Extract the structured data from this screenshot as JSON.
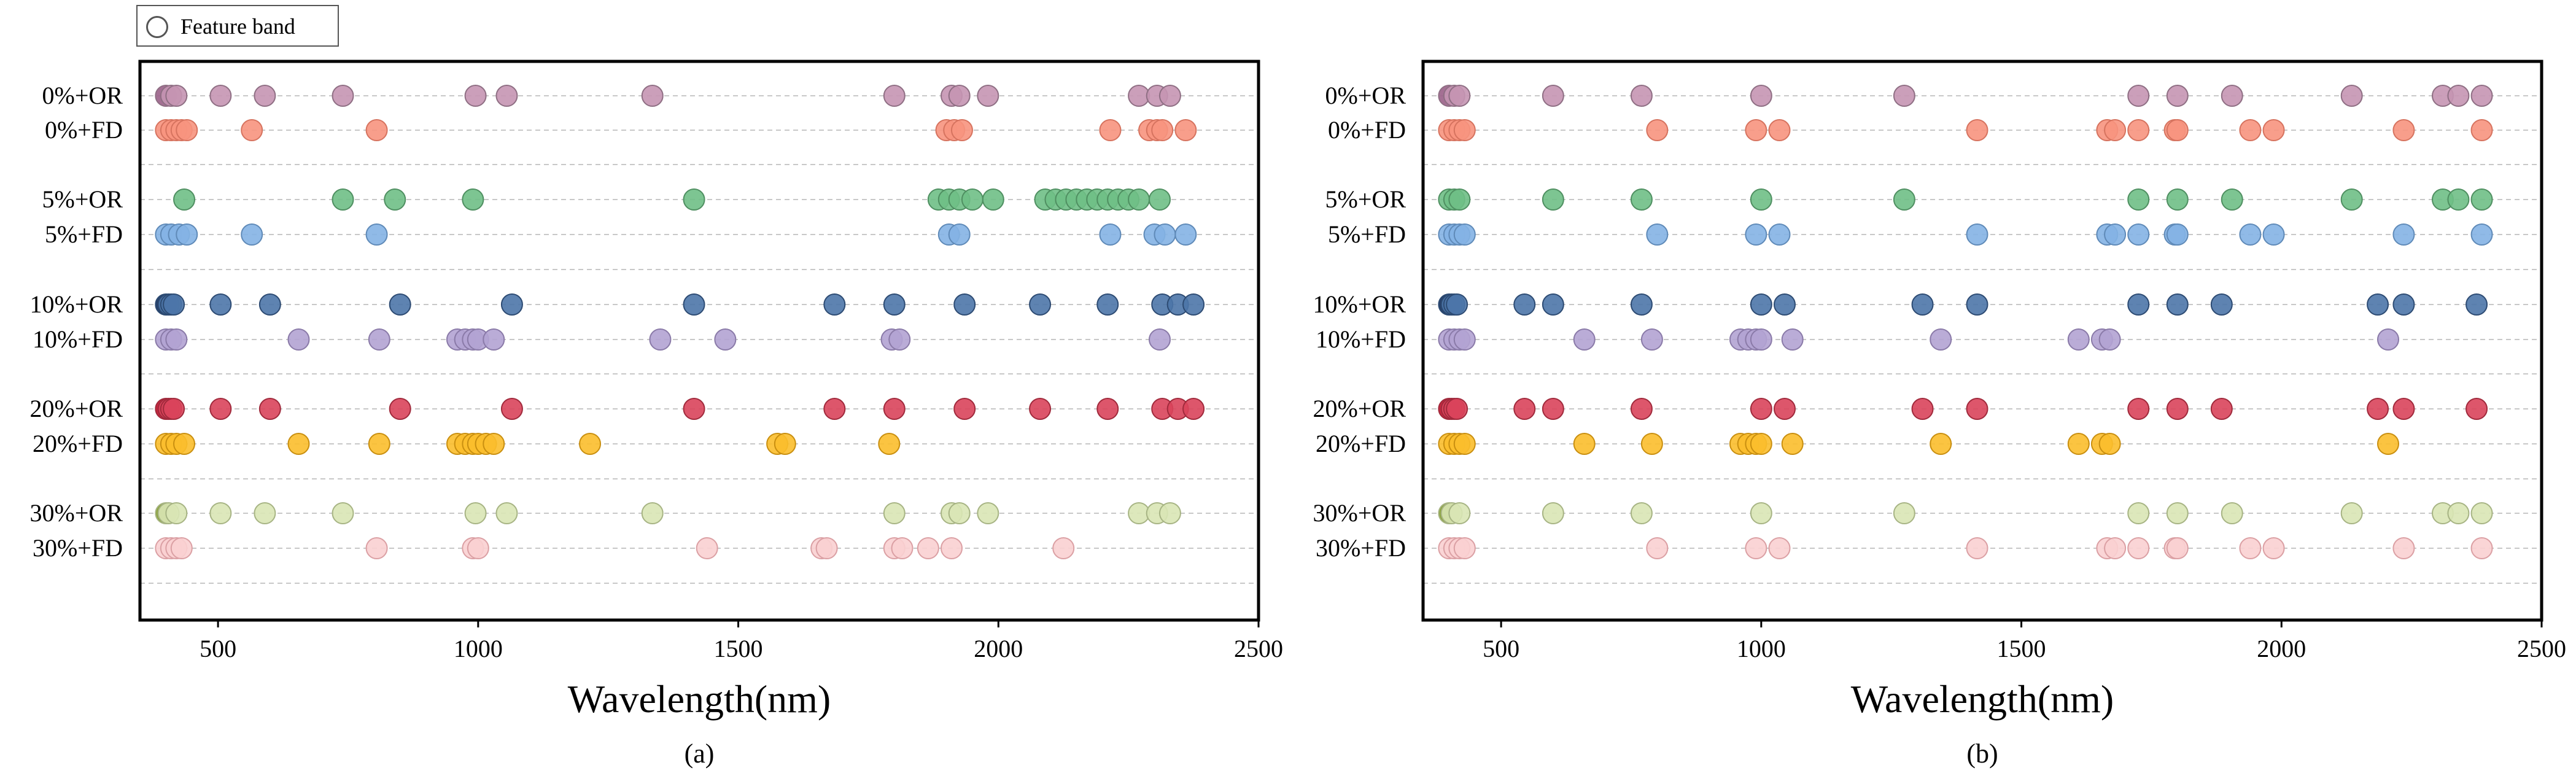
{
  "legend": {
    "label": "Feature band"
  },
  "row_labels": [
    "0%+OR",
    "0%+FD",
    "5%+OR",
    "5%+FD",
    "10%+OR",
    "10%+FD",
    "20%+OR",
    "20%+FD",
    "30%+OR",
    "30%+FD"
  ],
  "row_colors": [
    "#c595b3",
    "#f7937e",
    "#6fbf86",
    "#84b2e4",
    "#4d75a8",
    "#b3a3d3",
    "#d9445b",
    "#fbbe2c",
    "#d9e6b5",
    "#fad0d2"
  ],
  "row_first_colors": [
    "#9a6088",
    "#f7937e",
    "#6fbf86",
    "#84b2e4",
    "#0e2b59",
    "#b3a3d3",
    "#c0102a",
    "#fbbe2c",
    "#7f9a2a",
    "#fad0d2"
  ],
  "row_edges": [
    "#8f6f84",
    "#d6735f",
    "#4f8f61",
    "#5f8ab8",
    "#2d4b73",
    "#8a7aa8",
    "#a02a3c",
    "#c98f10",
    "#a7b484",
    "#dba0a4"
  ],
  "chart_data": [
    {
      "type": "scatter",
      "panel_label": "(a)",
      "xlabel": "Wavelength(nm)",
      "xlim": [
        350,
        2500
      ],
      "xticks": [
        500,
        1000,
        1500,
        2000,
        2500
      ],
      "grid": "horizontal dashed",
      "series": [
        {
          "name": "0%+OR",
          "x": [
            400,
            410,
            420,
            505,
            590,
            740,
            995,
            1055,
            1335,
            1800,
            1910,
            1925,
            1980,
            2270,
            2305,
            2330
          ]
        },
        {
          "name": "0%+FD",
          "x": [
            400,
            410,
            420,
            430,
            440,
            565,
            805,
            1900,
            1915,
            1930,
            2215,
            2290,
            2305,
            2315,
            2360
          ]
        },
        {
          "name": "5%+OR",
          "x": [
            435,
            740,
            840,
            990,
            1415,
            1885,
            1905,
            1925,
            1950,
            1990,
            2090,
            2110,
            2130,
            2150,
            2170,
            2190,
            2210,
            2230,
            2250,
            2270,
            2310
          ]
        },
        {
          "name": "5%+FD",
          "x": [
            400,
            410,
            425,
            440,
            565,
            805,
            1905,
            1925,
            2215,
            2300,
            2320,
            2360
          ]
        },
        {
          "name": "10%+OR",
          "x": [
            400,
            405,
            410,
            415,
            505,
            600,
            850,
            1065,
            1415,
            1685,
            1800,
            1935,
            2080,
            2210,
            2315,
            2345,
            2375
          ]
        },
        {
          "name": "10%+FD",
          "x": [
            400,
            410,
            420,
            655,
            810,
            960,
            975,
            990,
            1000,
            1030,
            1350,
            1475,
            1795,
            1810,
            2310
          ]
        },
        {
          "name": "20%+OR",
          "x": [
            400,
            405,
            410,
            415,
            505,
            600,
            850,
            1065,
            1415,
            1685,
            1800,
            1935,
            2080,
            2210,
            2315,
            2345,
            2375
          ]
        },
        {
          "name": "20%+FD",
          "x": [
            400,
            410,
            420,
            435,
            655,
            810,
            960,
            975,
            990,
            1000,
            1015,
            1030,
            1215,
            1575,
            1590,
            1790
          ]
        },
        {
          "name": "30%+OR",
          "x": [
            400,
            405,
            420,
            505,
            590,
            740,
            995,
            1055,
            1335,
            1800,
            1910,
            1925,
            1980,
            2270,
            2305,
            2330
          ]
        },
        {
          "name": "30%+FD",
          "x": [
            400,
            410,
            420,
            430,
            805,
            990,
            1000,
            1440,
            1660,
            1670,
            1800,
            1815,
            1865,
            1910,
            2125
          ]
        }
      ]
    },
    {
      "type": "scatter",
      "panel_label": "(b)",
      "xlabel": "Wavelength(nm)",
      "xlim": [
        350,
        2500
      ],
      "xticks": [
        500,
        1000,
        1500,
        2000,
        2500
      ],
      "grid": "horizontal dashed",
      "series": [
        {
          "name": "0%+OR",
          "x": [
            400,
            410,
            420,
            600,
            770,
            1000,
            1275,
            1725,
            1800,
            1905,
            2135,
            2310,
            2340,
            2385
          ]
        },
        {
          "name": "0%+FD",
          "x": [
            400,
            410,
            420,
            430,
            800,
            990,
            1035,
            1415,
            1665,
            1680,
            1725,
            1795,
            1800,
            1940,
            1985,
            2235,
            2385
          ]
        },
        {
          "name": "5%+OR",
          "x": [
            400,
            410,
            420,
            600,
            770,
            1000,
            1275,
            1725,
            1800,
            1905,
            2135,
            2310,
            2340,
            2385
          ]
        },
        {
          "name": "5%+FD",
          "x": [
            400,
            410,
            420,
            430,
            800,
            990,
            1035,
            1415,
            1665,
            1680,
            1725,
            1795,
            1800,
            1940,
            1985,
            2235,
            2385
          ]
        },
        {
          "name": "10%+OR",
          "x": [
            400,
            405,
            410,
            415,
            545,
            600,
            770,
            1000,
            1045,
            1310,
            1415,
            1725,
            1800,
            1885,
            2185,
            2235,
            2375
          ]
        },
        {
          "name": "10%+FD",
          "x": [
            400,
            410,
            420,
            430,
            660,
            790,
            960,
            975,
            990,
            1000,
            1060,
            1345,
            1610,
            1655,
            1670,
            2205
          ]
        },
        {
          "name": "20%+OR",
          "x": [
            400,
            405,
            410,
            415,
            545,
            600,
            770,
            1000,
            1045,
            1310,
            1415,
            1725,
            1800,
            1885,
            2185,
            2235,
            2375
          ]
        },
        {
          "name": "20%+FD",
          "x": [
            400,
            410,
            420,
            430,
            660,
            790,
            960,
            975,
            990,
            1000,
            1060,
            1345,
            1610,
            1655,
            1670,
            2205
          ]
        },
        {
          "name": "30%+OR",
          "x": [
            400,
            405,
            420,
            600,
            770,
            1000,
            1275,
            1725,
            1800,
            1905,
            2135,
            2310,
            2340,
            2385
          ]
        },
        {
          "name": "30%+FD",
          "x": [
            400,
            410,
            420,
            430,
            800,
            990,
            1035,
            1415,
            1665,
            1680,
            1725,
            1795,
            1800,
            1940,
            1985,
            2235,
            2385
          ]
        }
      ]
    }
  ]
}
